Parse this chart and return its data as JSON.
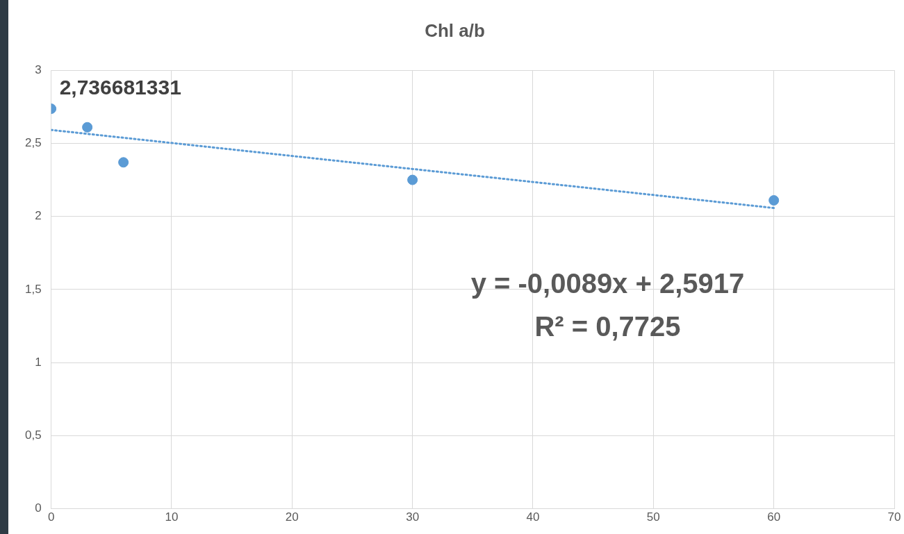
{
  "chart_data": {
    "type": "scatter",
    "title": "Chl a/b",
    "x": [
      0,
      3,
      6,
      30,
      60
    ],
    "series": [
      {
        "type": "scatter",
        "marker": "circle",
        "color": "#5b9bd5",
        "values": [
          2.736681331,
          2.61,
          2.37,
          2.25,
          2.11
        ],
        "value_labels": [
          "2,736681331",
          null,
          null,
          null,
          null
        ]
      },
      {
        "type": "line",
        "color": "#5b9bd5",
        "x": [
          0,
          60
        ],
        "values": [
          2.5917,
          2.0577
        ],
        "line_style": "dotted",
        "marker": "none"
      }
    ],
    "xlim": [
      0,
      70
    ],
    "xticks": [
      0,
      10,
      20,
      30,
      40,
      50,
      60,
      70
    ],
    "ylim": [
      0,
      3
    ],
    "yticks": [
      0,
      {
        "value": 0.5,
        "label": "0,5"
      },
      1,
      {
        "value": 1.5,
        "label": "1,5"
      },
      2,
      {
        "value": 2.5,
        "label": "2,5"
      },
      3
    ],
    "annotations": [
      "y = -0,0089x + 2,5917",
      "R² = 0,7725"
    ],
    "grid": true,
    "legend": false
  }
}
